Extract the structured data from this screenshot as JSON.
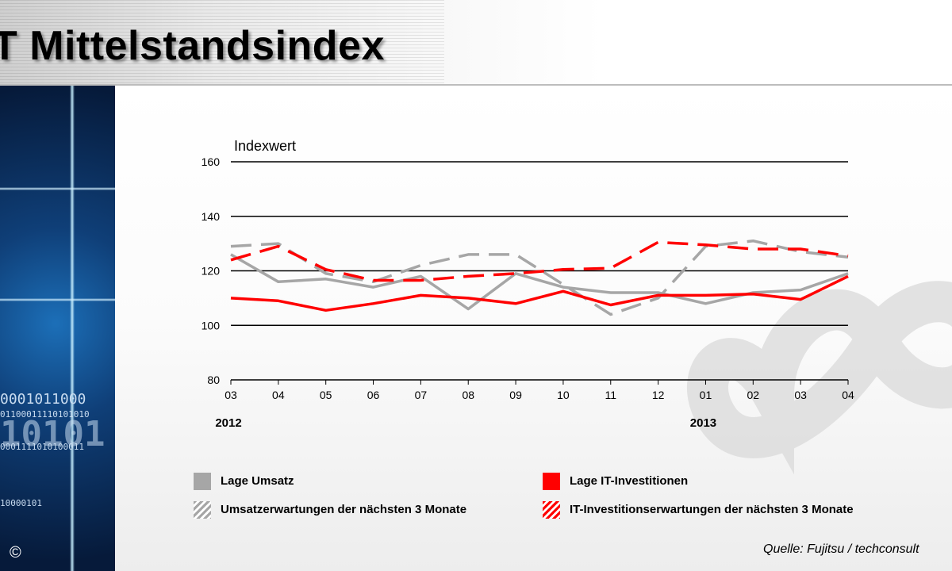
{
  "header": {
    "title": "T Mittelstandsindex"
  },
  "left_panel": {
    "binary_lines": [
      "0001011000",
      "01100011110101010",
      "10101",
      "0001111010100011",
      "10000101"
    ],
    "copyright": "©"
  },
  "chart_data": {
    "type": "line",
    "title": "",
    "ylabel": "Indexwert",
    "xlabel": "",
    "ylim": [
      80,
      160
    ],
    "yticks": [
      80,
      100,
      120,
      140,
      160
    ],
    "x": [
      "03",
      "04",
      "05",
      "06",
      "07",
      "08",
      "09",
      "10",
      "11",
      "12",
      "01",
      "02",
      "03",
      "04"
    ],
    "year_labels": [
      {
        "label": "2012",
        "index": 0
      },
      {
        "label": "2013",
        "index": 10
      }
    ],
    "grid": true,
    "legend_placement": "bottom",
    "series": [
      {
        "name": "Lage Umsatz",
        "color": "#a6a6a6",
        "style": "solid",
        "values": [
          126,
          116,
          117,
          114,
          118,
          106,
          119,
          114,
          112,
          112,
          108,
          112,
          113,
          119
        ]
      },
      {
        "name": "Umsatzerwartungen der nächsten 3 Monate",
        "color": "#a6a6a6",
        "style": "dashed",
        "values": [
          129,
          130,
          119,
          116,
          122,
          126,
          126,
          115,
          104,
          110,
          129,
          131,
          127,
          125
        ]
      },
      {
        "name": "Lage IT-Investitionen",
        "color": "#ff0000",
        "style": "solid",
        "values": [
          110,
          109,
          105.5,
          108,
          111,
          110,
          108,
          112.5,
          107.5,
          111,
          111,
          111.5,
          109.5,
          118
        ]
      },
      {
        "name": "IT-Investitionserwartungen der nächsten 3 Monate",
        "color": "#ff0000",
        "style": "dashed",
        "values": [
          124,
          129,
          120.5,
          116.5,
          116.5,
          118,
          119,
          120.5,
          121,
          130.5,
          129.5,
          128,
          128,
          125.5
        ]
      }
    ]
  },
  "source": "Quelle: Fujitsu / techconsult"
}
